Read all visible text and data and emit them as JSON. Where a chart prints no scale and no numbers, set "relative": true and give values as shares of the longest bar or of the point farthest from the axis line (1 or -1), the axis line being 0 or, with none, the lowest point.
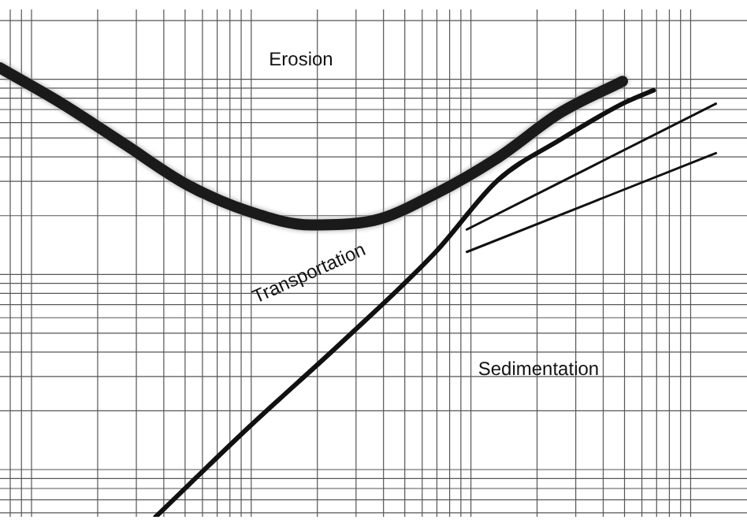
{
  "chart_data": {
    "type": "line",
    "relative": true,
    "grid": true,
    "legend": false,
    "marker": "none",
    "line_style": "solid",
    "categories": [
      null,
      null,
      null,
      null,
      null,
      null,
      null,
      null,
      null,
      null,
      null,
      null,
      null,
      null,
      null,
      null,
      null,
      null,
      null,
      null,
      null,
      null,
      null,
      null,
      null
    ],
    "series": [
      {
        "color": "#1a1a1a",
        "values": [
          1,
          null,
          0.92,
          null,
          0.83,
          null,
          0.74,
          null,
          0.68,
          null,
          0.65,
          null,
          0.66,
          null,
          0.72,
          null,
          0.8,
          null,
          0.9,
          null,
          0.97,
          null,
          null,
          null,
          null
        ]
      },
      {
        "color": "#111111",
        "values": [
          null,
          null,
          null,
          null,
          null,
          0,
          null,
          null,
          0.2,
          null,
          null,
          0.39,
          null,
          null,
          0.59,
          null,
          0.75,
          null,
          0.84,
          null,
          0.92,
          0.95,
          null,
          null,
          null
        ]
      },
      {
        "color": "#111111",
        "values": [
          null,
          null,
          null,
          null,
          null,
          null,
          null,
          null,
          null,
          null,
          null,
          null,
          null,
          null,
          null,
          0.64,
          null,
          null,
          null,
          null,
          null,
          null,
          null,
          0.92,
          null
        ]
      },
      {
        "color": "#111111",
        "values": [
          null,
          null,
          null,
          null,
          null,
          null,
          null,
          null,
          null,
          null,
          null,
          null,
          null,
          null,
          null,
          0.59,
          null,
          null,
          null,
          null,
          null,
          null,
          null,
          0.81,
          null
        ]
      }
    ],
    "annotations": [
      "Erosion",
      "Transportation",
      "Sedimentation"
    ]
  }
}
